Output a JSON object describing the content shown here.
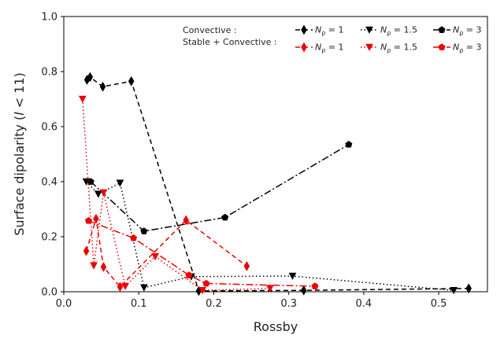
{
  "chart_data": {
    "type": "line",
    "xlabel": "Rossby",
    "ylabel": "Surface dipolarity (l < 11)",
    "xlim": [
      0.0,
      0.565
    ],
    "ylim": [
      0.0,
      1.0
    ],
    "x_ticks": [
      0.0,
      0.1,
      0.2,
      0.3,
      0.4,
      0.5
    ],
    "x_tick_labels": [
      "0.0",
      "0.1",
      "0.2",
      "0.3",
      "0.4",
      "0.5"
    ],
    "y_ticks": [
      0.0,
      0.2,
      0.4,
      0.6,
      0.8,
      1.0
    ],
    "y_tick_labels": [
      "0.0",
      "0.2",
      "0.4",
      "0.6",
      "0.8",
      "1.0"
    ],
    "grid": false,
    "legend": {
      "placement": "top-right",
      "group_labels": [
        "Convective :",
        "Stable + Convective :"
      ],
      "entries": [
        "N_ρ = 1",
        "N_ρ = 1.5",
        "N_ρ = 3"
      ]
    },
    "series": [
      {
        "name": "N_ρ = 1",
        "group": "Convective",
        "color": "#000000",
        "marker": "diamond",
        "dash": "6,4",
        "points": [
          [
            0.031,
            0.77
          ],
          [
            0.035,
            0.78
          ],
          [
            0.052,
            0.745
          ],
          [
            0.09,
            0.765
          ],
          [
            0.18,
            0.003
          ],
          [
            0.32,
            0.005
          ],
          [
            0.54,
            0.012
          ]
        ]
      },
      {
        "name": "N_ρ = 1.5",
        "group": "Convective",
        "color": "#000000",
        "marker": "triangle-down",
        "dash": "1.5,3",
        "points": [
          [
            0.03,
            0.4
          ],
          [
            0.046,
            0.355
          ],
          [
            0.075,
            0.395
          ],
          [
            0.107,
            0.015
          ],
          [
            0.17,
            0.055
          ],
          [
            0.305,
            0.057
          ],
          [
            0.52,
            0.005
          ]
        ]
      },
      {
        "name": "N_ρ = 3",
        "group": "Convective",
        "color": "#000000",
        "marker": "pentagon",
        "dash": "9,3,2,3",
        "points": [
          [
            0.036,
            0.4
          ],
          [
            0.107,
            0.22
          ],
          [
            0.215,
            0.27
          ],
          [
            0.38,
            0.535
          ]
        ]
      },
      {
        "name": "N_ρ = 1",
        "group": "Stable + Convective",
        "color": "#ee0000",
        "marker": "diamond",
        "dash": "6,4",
        "points": [
          [
            0.03,
            0.148
          ],
          [
            0.043,
            0.265
          ],
          [
            0.053,
            0.09
          ],
          [
            0.075,
            0.018
          ],
          [
            0.163,
            0.26
          ],
          [
            0.244,
            0.093
          ]
        ]
      },
      {
        "name": "N_ρ = 1.5",
        "group": "Stable + Convective",
        "color": "#ee0000",
        "marker": "triangle-down",
        "dash": "1.5,3",
        "points": [
          [
            0.025,
            0.7
          ],
          [
            0.04,
            0.095
          ],
          [
            0.053,
            0.36
          ],
          [
            0.082,
            0.02
          ],
          [
            0.122,
            0.128
          ],
          [
            0.185,
            0.005
          ],
          [
            0.275,
            0.012
          ]
        ]
      },
      {
        "name": "N_ρ = 3",
        "group": "Stable + Convective",
        "color": "#ee0000",
        "marker": "pentagon",
        "dash": "9,3,2,3",
        "points": [
          [
            0.033,
            0.258
          ],
          [
            0.093,
            0.195
          ],
          [
            0.167,
            0.06
          ],
          [
            0.19,
            0.03
          ],
          [
            0.335,
            0.02
          ]
        ]
      }
    ]
  }
}
